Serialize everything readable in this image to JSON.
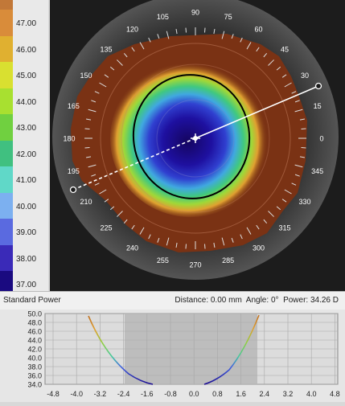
{
  "scale": {
    "labels": [
      "47.00",
      "46.00",
      "45.00",
      "44.00",
      "43.00",
      "42.00",
      "41.00",
      "40.00",
      "39.00",
      "38.00",
      "37.00"
    ],
    "colors": [
      "#d98c3a",
      "#e0b030",
      "#d9e030",
      "#a8e030",
      "#70d040",
      "#40c080",
      "#60d8c8",
      "#7cb0f0",
      "#5a6ae0",
      "#3a2ab8",
      "#1a0a80"
    ],
    "top_color": "#c27838"
  },
  "map": {
    "angle_labels": [
      "90",
      "75",
      "60",
      "45",
      "30",
      "15",
      "0",
      "345",
      "330",
      "315",
      "300",
      "285",
      "270",
      "255",
      "240",
      "225",
      "210",
      "195",
      "180",
      "165",
      "150",
      "135",
      "120",
      "105"
    ]
  },
  "info": {
    "mode": "Standard Power",
    "distance_label": "Distance:",
    "distance_value": "0.00 mm",
    "angle_label": "Angle:",
    "angle_value": "0°",
    "power_label": "Power:",
    "power_value": "34.26 D"
  },
  "profile": {
    "y_ticks": [
      "50.0",
      "48.0",
      "46.0",
      "44.0",
      "42.0",
      "40.0",
      "38.0",
      "36.0",
      "34.0"
    ],
    "x_ticks": [
      "-4.8",
      "-4.0",
      "-3.2",
      "-2.4",
      "-1.6",
      "-0.8",
      "0.0",
      "0.8",
      "1.6",
      "2.4",
      "3.2",
      "4.0",
      "4.8"
    ]
  }
}
